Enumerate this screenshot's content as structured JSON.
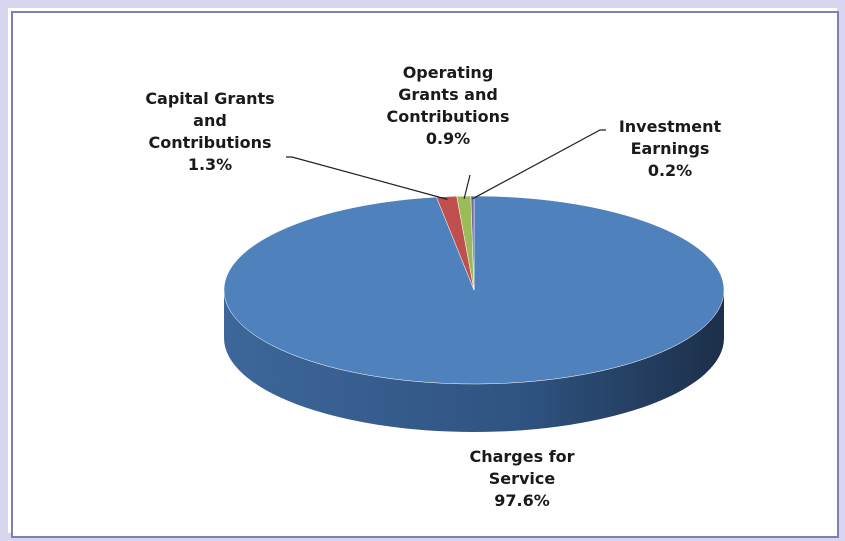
{
  "chart_data": {
    "type": "pie",
    "categories": [
      "Charges for Service",
      "Capital Grants and Contributions",
      "Operating Grants and Contributions",
      "Investment Earnings"
    ],
    "values": [
      97.6,
      1.3,
      0.9,
      0.2
    ],
    "value_labels": [
      "97.6%",
      "1.3%",
      "0.9%",
      "0.2%"
    ],
    "colors": [
      "#4f81bd",
      "#c0504d",
      "#9bbb59",
      "#8064a2"
    ]
  }
}
